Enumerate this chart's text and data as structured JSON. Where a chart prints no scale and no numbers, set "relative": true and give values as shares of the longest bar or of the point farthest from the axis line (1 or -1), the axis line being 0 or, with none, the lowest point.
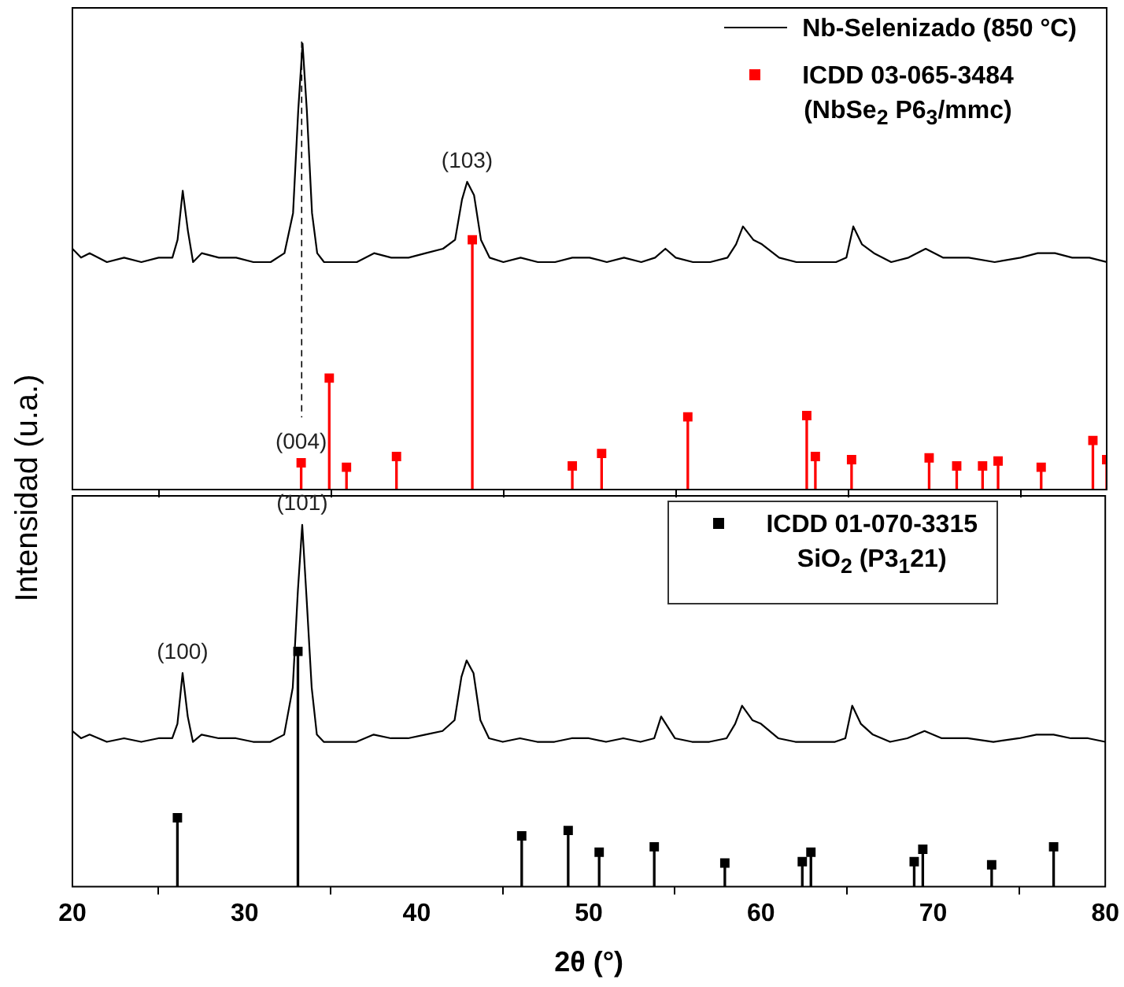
{
  "chart_data": [
    {
      "type": "line",
      "relative": true,
      "ylabel": "Intensidad (u.a.)",
      "xlim": [
        20,
        80
      ],
      "xticks": [
        20,
        30,
        40,
        50,
        60,
        70,
        80
      ],
      "tick_labels": false,
      "legend": "top right",
      "series": [
        {
          "name": "Nb-Selenizado (850 °C)",
          "color": "#000000",
          "x": [
            20,
            20.5,
            21,
            22,
            23,
            24,
            25,
            25.8,
            26.1,
            26.4,
            26.7,
            27,
            27.5,
            28.5,
            29.5,
            30.5,
            31.5,
            32.3,
            32.8,
            33.1,
            33.35,
            33.6,
            33.9,
            34.2,
            34.6,
            35.5,
            36.5,
            37.5,
            38.5,
            39.5,
            40.5,
            41.5,
            42.2,
            42.6,
            42.9,
            43.3,
            43.7,
            44.2,
            45,
            46,
            47,
            48,
            49,
            50,
            51,
            52,
            53,
            53.8,
            54.4,
            55,
            56,
            57,
            58,
            58.5,
            58.9,
            59.5,
            60,
            61,
            62,
            63,
            64.3,
            64.9,
            65.3,
            65.8,
            66.5,
            67.5,
            68.5,
            69.5,
            70.5,
            72,
            73.5,
            75,
            76,
            77,
            78,
            79,
            80
          ],
          "values": [
            0.54,
            0.52,
            0.53,
            0.51,
            0.52,
            0.51,
            0.52,
            0.52,
            0.56,
            0.67,
            0.58,
            0.51,
            0.53,
            0.52,
            0.52,
            0.51,
            0.51,
            0.53,
            0.62,
            0.85,
            1,
            0.85,
            0.62,
            0.53,
            0.51,
            0.51,
            0.51,
            0.53,
            0.52,
            0.52,
            0.53,
            0.54,
            0.56,
            0.65,
            0.69,
            0.66,
            0.56,
            0.52,
            0.51,
            0.52,
            0.51,
            0.51,
            0.52,
            0.52,
            0.51,
            0.52,
            0.51,
            0.52,
            0.54,
            0.52,
            0.51,
            0.51,
            0.52,
            0.55,
            0.59,
            0.56,
            0.55,
            0.52,
            0.51,
            0.51,
            0.51,
            0.52,
            0.59,
            0.55,
            0.53,
            0.51,
            0.52,
            0.54,
            0.52,
            0.52,
            0.51,
            0.52,
            0.53,
            0.53,
            0.52,
            0.52,
            0.51
          ]
        },
        {
          "name": "ICDD 03-065-3484\n(NbSe$_{2}$ P6$_{3}$/mmc)",
          "type": "lollipop",
          "marker": "square",
          "color": "#ff0000",
          "x": [
            33.27,
            34.9,
            35.9,
            38.8,
            43.2,
            49.0,
            50.7,
            55.7,
            62.6,
            63.1,
            65.2,
            69.7,
            71.3,
            72.8,
            73.7,
            76.2,
            79.2,
            80
          ],
          "values": [
            0.06,
            0.25,
            0.05,
            0.074,
            0.56,
            0.053,
            0.081,
            0.163,
            0.166,
            0.074,
            0.067,
            0.071,
            0.053,
            0.053,
            0.064,
            0.05,
            0.11,
            0.067
          ]
        }
      ],
      "ref_lines": [
        {
          "axis": "x",
          "value": 33.3,
          "line_style": "dashed",
          "color": "#000000"
        }
      ],
      "annotations": [
        {
          "text": "(103)",
          "x": 42.9,
          "y": 0.69
        },
        {
          "text": "(004)",
          "x": 33.27,
          "y": 0.06
        }
      ]
    },
    {
      "type": "line",
      "relative": true,
      "xlabel": "2θ (°)",
      "xlim": [
        20,
        80
      ],
      "xticks": [
        20,
        30,
        40,
        50,
        60,
        70,
        80
      ],
      "tick_labels": "x",
      "legend": "top right",
      "series": [
        {
          "color": "#000000",
          "x": [
            20,
            20.5,
            21,
            22,
            23,
            24,
            25,
            25.8,
            26.1,
            26.4,
            26.7,
            27,
            27.5,
            28.5,
            29.5,
            30.5,
            31.5,
            32.3,
            32.8,
            33.1,
            33.35,
            33.6,
            33.9,
            34.2,
            34.6,
            35.5,
            36.5,
            37.5,
            38.5,
            39.5,
            40.5,
            41.5,
            42.2,
            42.6,
            42.9,
            43.3,
            43.7,
            44.2,
            45,
            46,
            47,
            48,
            49,
            50,
            51,
            52,
            53,
            53.8,
            54.2,
            55,
            56,
            57,
            58,
            58.5,
            58.9,
            59.5,
            60,
            61,
            62,
            63,
            64.3,
            64.9,
            65.3,
            65.8,
            66.5,
            67.5,
            68.5,
            69.5,
            70.5,
            72,
            73.5,
            75,
            76,
            77,
            78,
            79,
            80
          ],
          "values": [
            0.43,
            0.41,
            0.42,
            0.4,
            0.41,
            0.4,
            0.41,
            0.41,
            0.45,
            0.59,
            0.47,
            0.4,
            0.42,
            0.41,
            0.41,
            0.4,
            0.4,
            0.42,
            0.55,
            0.82,
            1,
            0.8,
            0.55,
            0.42,
            0.4,
            0.4,
            0.4,
            0.42,
            0.41,
            0.41,
            0.42,
            0.43,
            0.46,
            0.58,
            0.625,
            0.59,
            0.46,
            0.41,
            0.4,
            0.41,
            0.4,
            0.4,
            0.41,
            0.41,
            0.4,
            0.41,
            0.4,
            0.41,
            0.47,
            0.41,
            0.4,
            0.4,
            0.41,
            0.45,
            0.5,
            0.46,
            0.45,
            0.41,
            0.4,
            0.4,
            0.4,
            0.41,
            0.5,
            0.45,
            0.42,
            0.4,
            0.41,
            0.43,
            0.41,
            0.41,
            0.4,
            0.41,
            0.42,
            0.42,
            0.41,
            0.41,
            0.4
          ]
        },
        {
          "name": "ICDD 01-070-3315\nSiO$_{2}$ (P3$_{1}$21)",
          "type": "lollipop",
          "marker": "square",
          "color": "#000000",
          "x": [
            26.1,
            33.1,
            46.1,
            48.8,
            50.6,
            53.8,
            57.9,
            62.4,
            62.9,
            68.9,
            69.4,
            73.4,
            77.0
          ],
          "values": [
            0.19,
            0.65,
            0.14,
            0.155,
            0.095,
            0.11,
            0.065,
            0.069,
            0.095,
            0.069,
            0.103,
            0.06,
            0.11
          ]
        }
      ],
      "annotations": [
        {
          "text": "(100)",
          "x": 26.4,
          "y": 0.59
        },
        {
          "text": "(101)",
          "x": 33.35,
          "y": 1
        }
      ]
    }
  ]
}
